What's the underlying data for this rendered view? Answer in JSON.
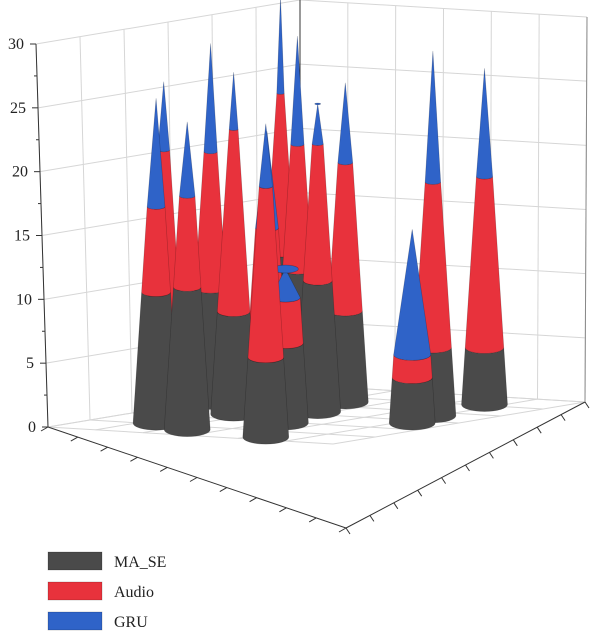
{
  "chart_data": {
    "type": "bar3d-stacked-cones",
    "zlim": [
      0,
      30
    ],
    "z_ticks": [
      "0",
      "5",
      "10",
      "15",
      "20",
      "25",
      "30"
    ],
    "grid": true,
    "legend_position": "bottom-left",
    "series": [
      {
        "name": "MA_SE",
        "color": "#4a4a4a"
      },
      {
        "name": "Audio",
        "color": "#e8323c"
      },
      {
        "name": "GRU",
        "color": "#2f63c8"
      }
    ],
    "stacks": [
      {
        "MA_SE": 11.5,
        "Audio": 7.5,
        "GRU": 9.5
      },
      {
        "MA_SE": 9.0,
        "Audio": 14.0,
        "GRU": 6.0
      },
      {
        "MA_SE": 10.0,
        "Audio": 12.0,
        "GRU": 9.5
      },
      {
        "MA_SE": 12.0,
        "Audio": 14.0,
        "GRU": 8.5
      },
      {
        "MA_SE": 12.5,
        "Audio": 8.0,
        "GRU": 6.5
      },
      {
        "MA_SE": 9.0,
        "Audio": 16.0,
        "GRU": 5.0
      },
      {
        "MA_SE": 7.5,
        "Audio": 8.0,
        "GRU": 8.5
      },
      {
        "MA_SE": 11.0,
        "Audio": 11.0,
        "GRU": 9.5
      },
      {
        "MA_SE": 7.0,
        "Audio": 15.0,
        "GRU": 5.5
      },
      {
        "MA_SE": 7.0,
        "Audio": 4.0,
        "GRU": 2.5
      },
      {
        "MA_SE": 11.5,
        "Audio": 12.0,
        "GRU": 3.5
      },
      {
        "MA_SE": 8.0,
        "Audio": 13.0,
        "GRU": 7.0
      },
      {
        "MA_SE": 4.0,
        "Audio": 2.0,
        "GRU": 11.0
      },
      {
        "MA_SE": 6.0,
        "Audio": 14.5,
        "GRU": 11.5
      },
      {
        "MA_SE": 5.0,
        "Audio": 15.0,
        "GRU": 9.5
      }
    ]
  }
}
